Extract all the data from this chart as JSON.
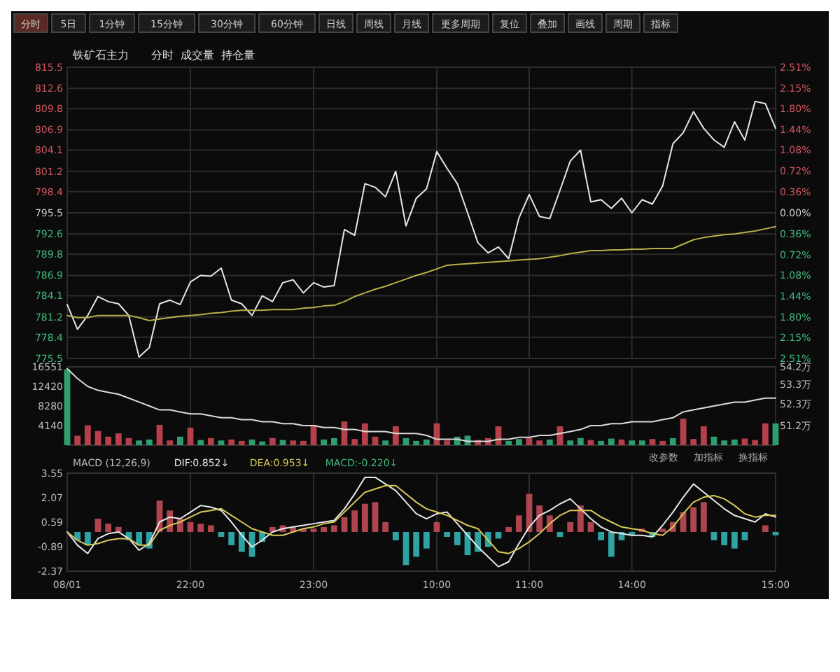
{
  "chart_data": [
    {
      "type": "line",
      "title": "铁矿石主力",
      "subtitle": "分时  成交量  持仓量",
      "annotations": [
        "分时",
        "5日",
        "1分钟",
        "15分钟",
        "30分钟",
        "60分钟",
        "日线",
        "周线",
        "月线",
        "更多周期",
        "复位",
        "叠加",
        "画线",
        "周期",
        "指标"
      ],
      "categories": [
        null,
        null,
        null,
        null,
        null,
        null,
        null,
        null,
        null,
        null,
        null,
        null,
        null,
        null,
        null,
        null,
        null,
        null,
        null,
        null,
        null,
        null,
        null,
        null,
        null,
        null,
        null,
        null,
        null,
        null,
        null,
        null,
        null,
        null,
        null,
        null,
        null,
        null,
        null,
        null,
        null,
        null,
        null,
        null,
        null,
        null,
        null,
        null,
        null,
        null,
        null,
        null,
        null,
        null,
        null,
        null,
        null,
        null,
        null,
        null,
        null,
        null,
        null,
        null,
        null,
        null,
        null,
        null,
        null,
        null
      ],
      "series": [
        {
          "color": "#e6e6e6",
          "values": [
            782.9,
            779.5,
            781.4,
            784.0,
            783.3,
            783.0,
            781.4,
            775.7,
            777.0,
            783.0,
            783.5,
            782.9,
            786.0,
            786.9,
            786.8,
            787.9,
            783.5,
            783.0,
            781.4,
            784.1,
            783.3,
            785.9,
            786.3,
            784.5,
            785.9,
            785.3,
            785.5,
            793.2,
            792.4,
            799.5,
            799.0,
            797.7,
            801.2,
            793.7,
            797.5,
            798.8,
            803.9,
            801.6,
            799.5,
            795.5,
            791.4,
            790.0,
            790.8,
            789.2,
            794.8,
            798.0,
            795.0,
            794.7,
            798.6,
            802.6,
            804.1,
            797.0,
            797.3,
            796.1,
            797.5,
            795.5,
            797.3,
            796.7,
            799.2,
            805.0,
            806.5,
            809.4,
            807.1,
            805.5,
            804.5,
            808.0,
            805.5,
            810.8,
            810.5,
            807.1
          ]
        },
        {
          "color": "#b8b04a",
          "values": [
            781.4,
            781.1,
            781.1,
            781.4,
            781.4,
            781.4,
            781.4,
            781.1,
            780.7,
            780.9,
            781.1,
            781.3,
            781.4,
            781.5,
            781.7,
            781.8,
            782.0,
            782.1,
            782.1,
            782.1,
            782.2,
            782.2,
            782.2,
            782.4,
            782.5,
            782.7,
            782.8,
            783.3,
            784.0,
            784.5,
            785.0,
            785.4,
            785.9,
            786.4,
            786.9,
            787.3,
            787.8,
            788.3,
            788.4,
            788.5,
            788.6,
            788.7,
            788.8,
            788.9,
            789.0,
            789.1,
            789.2,
            789.4,
            789.6,
            789.9,
            790.1,
            790.3,
            790.3,
            790.4,
            790.4,
            790.5,
            790.5,
            790.6,
            790.6,
            790.6,
            791.2,
            791.8,
            792.1,
            792.3,
            792.5,
            792.6,
            792.8,
            793.0,
            793.3,
            793.6
          ]
        }
      ],
      "ylim": [
        775.5,
        815.5
      ],
      "yticks": [
        815.5,
        812.6,
        809.8,
        806.9,
        804.1,
        801.2,
        798.4,
        795.5,
        792.6,
        789.8,
        786.9,
        784.1,
        781.2,
        778.4,
        775.5
      ],
      "y2lim": [
        -2.51,
        2.51
      ],
      "y2ticks": [
        {
          "value": 2.51,
          "label": "2.51%"
        },
        {
          "value": 2.15,
          "label": "2.15%"
        },
        {
          "value": 1.8,
          "label": "1.80%"
        },
        {
          "value": 1.44,
          "label": "1.44%"
        },
        {
          "value": 1.08,
          "label": "1.08%"
        },
        {
          "value": 0.72,
          "label": "0.72%"
        },
        {
          "value": 0.36,
          "label": "0.36%"
        },
        {
          "value": 0,
          "label": "0.00%"
        },
        {
          "value": -0.36,
          "label": "0.36%"
        },
        {
          "value": -0.72,
          "label": "0.72%"
        },
        {
          "value": -1.08,
          "label": "1.08%"
        },
        {
          "value": -1.44,
          "label": "1.44%"
        },
        {
          "value": -1.8,
          "label": "1.80%"
        },
        {
          "value": -2.15,
          "label": "2.15%"
        },
        {
          "value": -2.51,
          "label": "2.51%"
        }
      ],
      "grid": true,
      "tick_labels": "y"
    },
    {
      "type": "bar",
      "annotations": [
        "改参数",
        "加指标",
        "换指标"
      ],
      "categories": [
        null,
        null,
        null,
        null,
        null,
        null,
        null,
        null,
        null,
        null,
        null,
        null,
        null,
        null,
        null,
        null,
        null,
        null,
        null,
        null,
        null,
        null,
        null,
        null,
        null,
        null,
        null,
        null,
        null,
        null,
        null,
        null,
        null,
        null,
        null,
        null,
        null,
        null,
        null,
        null,
        null,
        null,
        null,
        null,
        null,
        null,
        null,
        null,
        null,
        null,
        null,
        null,
        null,
        null,
        null,
        null,
        null,
        null,
        null,
        null,
        null,
        null,
        null,
        null,
        null,
        null,
        null,
        null,
        null,
        null
      ],
      "series": [
        {
          "values": [
            16000,
            2000,
            4200,
            3000,
            1800,
            2500,
            1500,
            1000,
            1200,
            4300,
            1000,
            1800,
            3700,
            1100,
            1500,
            1000,
            1200,
            900,
            1200,
            800,
            1500,
            1100,
            1000,
            900,
            4300,
            1200,
            1500,
            5000,
            1300,
            4600,
            1800,
            1000,
            4000,
            1500,
            900,
            1200,
            4600,
            1000,
            1800,
            2000,
            1100,
            1500,
            4000,
            900,
            1300,
            1500,
            1000,
            1200,
            4000,
            1000,
            1500,
            1100,
            900,
            1400,
            1200,
            1000,
            1000,
            1300,
            900,
            1500,
            5600,
            1300,
            4000,
            1800,
            1000,
            1200,
            1400,
            1100,
            4600,
            4600
          ],
          "colors": [
            "#2f9e6e",
            "#b5404c",
            "#b5404c",
            "#b5404c",
            "#b5404c",
            "#b5404c",
            "#b5404c",
            "#2f9e6e",
            "#2f9e6e",
            "#b5404c",
            "#b5404c",
            "#2f9e6e",
            "#b5404c",
            "#2f9e6e",
            "#b5404c",
            "#2f9e6e",
            "#b5404c",
            "#b5404c",
            "#2f9e6e",
            "#2f9e6e",
            "#b5404c",
            "#2f9e6e",
            "#b5404c",
            "#b5404c",
            "#b5404c",
            "#2f9e6e",
            "#2f9e6e",
            "#b5404c",
            "#b5404c",
            "#b5404c",
            "#b5404c",
            "#2f9e6e",
            "#b5404c",
            "#2f9e6e",
            "#2f9e6e",
            "#2f9e6e",
            "#b5404c",
            "#b5404c",
            "#2f9e6e",
            "#2f9e6e",
            "#b5404c",
            "#b5404c",
            "#b5404c",
            "#2f9e6e",
            "#2f9e6e",
            "#b5404c",
            "#b5404c",
            "#2f9e6e",
            "#b5404c",
            "#2f9e6e",
            "#2f9e6e",
            "#b5404c",
            "#2f9e6e",
            "#2f9e6e",
            "#b5404c",
            "#2f9e6e",
            "#2f9e6e",
            "#b5404c",
            "#b5404c",
            "#2f9e6e",
            "#b5404c",
            "#b5404c",
            "#b5404c",
            "#2f9e6e",
            "#2f9e6e",
            "#2f9e6e",
            "#b5404c",
            "#b5404c",
            "#b5404c",
            "#2f9e6e"
          ]
        },
        {
          "type": "line",
          "axis": "y2",
          "color": "#d9d9d9",
          "values": [
            54.1,
            53.6,
            53.2,
            53.0,
            52.9,
            52.8,
            52.6,
            52.4,
            52.2,
            52.0,
            52.0,
            51.9,
            51.8,
            51.8,
            51.7,
            51.6,
            51.6,
            51.5,
            51.5,
            51.4,
            51.4,
            51.3,
            51.3,
            51.2,
            51.2,
            51.1,
            51.1,
            51.0,
            51.0,
            50.9,
            50.9,
            50.9,
            50.8,
            50.8,
            50.8,
            50.7,
            50.5,
            50.5,
            50.5,
            50.4,
            50.4,
            50.4,
            50.5,
            50.5,
            50.6,
            50.6,
            50.7,
            50.7,
            50.8,
            50.9,
            51.0,
            51.2,
            51.2,
            51.3,
            51.3,
            51.4,
            51.4,
            51.4,
            51.5,
            51.6,
            51.9,
            52.0,
            52.1,
            52.2,
            52.3,
            52.4,
            52.4,
            52.5,
            52.6,
            52.6
          ]
        }
      ],
      "ylim": [
        0,
        16551
      ],
      "yticks": [
        16551,
        12420,
        8280,
        4140
      ],
      "y2lim": [
        50.2,
        54.2
      ],
      "y2ticks": [
        {
          "value": 54.2,
          "label": "54.2万"
        },
        {
          "value": 53.3,
          "label": "53.3万"
        },
        {
          "value": 52.3,
          "label": "52.3万"
        },
        {
          "value": 51.2,
          "label": "51.2万"
        }
      ],
      "grid": "x",
      "tick_labels": "y"
    },
    {
      "type": "bar",
      "annotations": [
        "MACD (12,26,9)",
        "DIF:0.852↓",
        "DEA:0.953↓",
        "MACD:-0.220↓"
      ],
      "categories": [
        "08/01",
        null,
        null,
        null,
        null,
        null,
        null,
        null,
        null,
        null,
        null,
        null,
        "22:00",
        null,
        null,
        null,
        null,
        null,
        null,
        null,
        null,
        null,
        null,
        null,
        "23:00",
        null,
        null,
        null,
        null,
        null,
        null,
        null,
        null,
        null,
        null,
        null,
        "10:00",
        null,
        null,
        null,
        null,
        null,
        null,
        null,
        null,
        "11:00",
        null,
        null,
        null,
        null,
        null,
        null,
        null,
        null,
        null,
        "14:00",
        null,
        null,
        null,
        null,
        null,
        null,
        null,
        null,
        null,
        null,
        null,
        null,
        null,
        "15:00"
      ],
      "series": [
        {
          "values": [
            0,
            -0.5,
            -0.8,
            0.8,
            0.5,
            0.3,
            -0.5,
            -0.8,
            -1.0,
            1.9,
            1.3,
            0.8,
            0.6,
            0.5,
            0.4,
            -0.3,
            -0.8,
            -1.2,
            -1.5,
            -0.6,
            0.3,
            0.4,
            0.3,
            0.2,
            0.2,
            0.3,
            0.4,
            0.9,
            1.3,
            1.7,
            1.8,
            0.6,
            -0.5,
            -2.0,
            -1.5,
            -1.0,
            0.6,
            -0.3,
            -0.8,
            -1.4,
            -1.2,
            -0.9,
            -0.4,
            0.3,
            1.0,
            2.3,
            1.6,
            1.0,
            -0.3,
            0.6,
            1.6,
            0.6,
            -0.5,
            -1.5,
            -0.5,
            -0.2,
            0.2,
            -0.3,
            0.2,
            0.6,
            1.2,
            1.5,
            1.8,
            -0.5,
            -0.8,
            -1.0,
            -0.5,
            0,
            0.4,
            -0.2
          ],
          "colors": [
            "#b0454f",
            "#2fa3a3",
            "#2fa3a3",
            "#b0454f",
            "#b0454f",
            "#b0454f",
            "#2fa3a3",
            "#2fa3a3",
            "#2fa3a3",
            "#b0454f",
            "#b0454f",
            "#b0454f",
            "#b0454f",
            "#b0454f",
            "#b0454f",
            "#2fa3a3",
            "#2fa3a3",
            "#2fa3a3",
            "#2fa3a3",
            "#2fa3a3",
            "#b0454f",
            "#b0454f",
            "#b0454f",
            "#b0454f",
            "#b0454f",
            "#b0454f",
            "#b0454f",
            "#b0454f",
            "#b0454f",
            "#b0454f",
            "#b0454f",
            "#b0454f",
            "#2fa3a3",
            "#2fa3a3",
            "#2fa3a3",
            "#2fa3a3",
            "#b0454f",
            "#2fa3a3",
            "#2fa3a3",
            "#2fa3a3",
            "#2fa3a3",
            "#2fa3a3",
            "#2fa3a3",
            "#b0454f",
            "#b0454f",
            "#b0454f",
            "#b0454f",
            "#b0454f",
            "#2fa3a3",
            "#b0454f",
            "#b0454f",
            "#b0454f",
            "#2fa3a3",
            "#2fa3a3",
            "#2fa3a3",
            "#2fa3a3",
            "#b0454f",
            "#2fa3a3",
            "#b0454f",
            "#b0454f",
            "#b0454f",
            "#b0454f",
            "#b0454f",
            "#2fa3a3",
            "#2fa3a3",
            "#2fa3a3",
            "#2fa3a3",
            "#b0454f",
            "#b0454f",
            "#2fa3a3"
          ]
        },
        {
          "type": "line",
          "color": "#e8e8e8",
          "values": [
            0,
            -0.8,
            -1.3,
            -0.4,
            -0.1,
            0,
            -0.4,
            -1.1,
            -0.7,
            0.6,
            0.9,
            0.8,
            1.2,
            1.6,
            1.5,
            1.3,
            0.6,
            -0.2,
            -0.9,
            -0.5,
            0,
            0.2,
            0.3,
            0.4,
            0.5,
            0.6,
            0.7,
            1.4,
            2.3,
            3.3,
            3.3,
            2.9,
            2.5,
            1.8,
            1.1,
            0.8,
            1.1,
            1.2,
            0.5,
            -0.2,
            -0.9,
            -1.5,
            -2.1,
            -1.8,
            -0.7,
            0.3,
            1.0,
            1.3,
            1.7,
            2.0,
            1.4,
            0.8,
            0.3,
            0,
            -0.1,
            -0.2,
            -0.2,
            -0.3,
            0.4,
            1.2,
            2.1,
            2.9,
            2.4,
            1.9,
            1.4,
            1.0,
            0.8,
            0.6,
            1.1,
            0.9
          ]
        },
        {
          "type": "line",
          "color": "#d9c85a",
          "values": [
            0,
            -0.5,
            -0.8,
            -0.7,
            -0.5,
            -0.4,
            -0.4,
            -0.8,
            -0.8,
            0.1,
            0.4,
            0.6,
            0.9,
            1.2,
            1.3,
            1.4,
            1.0,
            0.6,
            0.2,
            0,
            -0.2,
            -0.2,
            0,
            0.2,
            0.3,
            0.5,
            0.6,
            1.2,
            1.8,
            2.4,
            2.6,
            2.8,
            2.8,
            2.3,
            1.8,
            1.4,
            1.2,
            1.0,
            0.7,
            0.4,
            0.2,
            -0.5,
            -1.2,
            -1.3,
            -1.0,
            -0.6,
            -0.1,
            0.5,
            1.0,
            1.3,
            1.3,
            1.3,
            0.9,
            0.6,
            0.3,
            0.2,
            0.1,
            -0.1,
            -0.2,
            0.3,
            1.1,
            1.8,
            2.1,
            2.2,
            2.0,
            1.6,
            1.1,
            0.9,
            1.0,
            1.0
          ]
        }
      ],
      "ylim": [
        -2.37,
        3.55
      ],
      "yticks": [
        3.55,
        2.07,
        0.59,
        -0.89,
        -2.37
      ],
      "grid": "x"
    }
  ]
}
